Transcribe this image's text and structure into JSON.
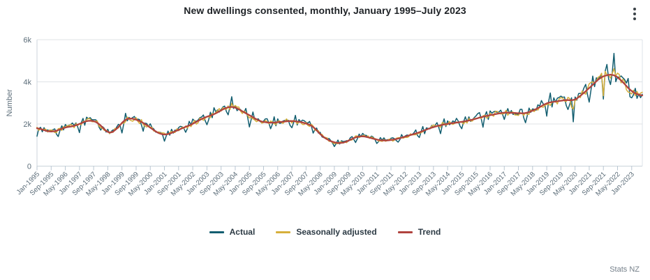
{
  "header": {
    "title": "New dwellings consented, monthly, January 1995–July 2023",
    "menu_icon": "kebab-menu-icon"
  },
  "footer": {
    "source": "Stats NZ"
  },
  "chart_data": {
    "type": "line",
    "title": "New dwellings consented, monthly, January 1995–July 2023",
    "xlabel": "",
    "ylabel": "Number",
    "ylim": [
      0,
      6000
    ],
    "ytick_values": [
      0,
      2000,
      4000,
      6000
    ],
    "ytick_labels": [
      "0",
      "2k",
      "4k",
      "6k"
    ],
    "grid": "horizontal",
    "legend_position": "bottom",
    "x_unit": "month",
    "x_start": "Jan-1995",
    "x_end": "Jul-2023",
    "months_total": 343,
    "xtick_every_months": 8,
    "xtick_labels": [
      "Jan-1995",
      "Sep-1995",
      "May-1996",
      "Jan-1997",
      "Sep-1997",
      "May-1998",
      "Jan-1999",
      "Sep-1999",
      "May-2000",
      "Jan-2001",
      "Sep-2001",
      "May-2002",
      "Jan-2003",
      "Sep-2003",
      "May-2004",
      "Jan-2005",
      "Sep-2005",
      "May-2006",
      "Jan-2007",
      "Sep-2007",
      "May-2008",
      "Jan-2009",
      "Sep-2009",
      "May-2010",
      "Jan-2011",
      "Sep-2011",
      "May-2012",
      "Jan-2013",
      "Sep-2013",
      "May-2014",
      "Jan-2015",
      "Sep-2015",
      "May-2016",
      "Jan-2017",
      "Sep-2017",
      "May-2018",
      "Jan-2019",
      "Sep-2019",
      "May-2020",
      "Jan-2021",
      "Sep-2021",
      "May-2022",
      "Jan-2023"
    ],
    "series": [
      {
        "name": "Actual",
        "color": "#135E70",
        "description": "monthly actual consents, jagged seasonal line"
      },
      {
        "name": "Seasonally adjusted",
        "color": "#D6AF3B",
        "description": "seasonally adjusted monthly consents"
      },
      {
        "name": "Trend",
        "color": "#B0433E",
        "description": "smooth trend line"
      }
    ],
    "trend_keypoints": [
      [
        0,
        1830
      ],
      [
        4,
        1700
      ],
      [
        8,
        1620
      ],
      [
        12,
        1700
      ],
      [
        16,
        1850
      ],
      [
        20,
        1880
      ],
      [
        24,
        2000
      ],
      [
        29,
        2180
      ],
      [
        34,
        2100
      ],
      [
        38,
        1750
      ],
      [
        41,
        1520
      ],
      [
        45,
        1750
      ],
      [
        50,
        2250
      ],
      [
        53,
        2280
      ],
      [
        58,
        2150
      ],
      [
        62,
        1950
      ],
      [
        66,
        1700
      ],
      [
        70,
        1500
      ],
      [
        74,
        1500
      ],
      [
        78,
        1650
      ],
      [
        83,
        1830
      ],
      [
        88,
        2000
      ],
      [
        92,
        2200
      ],
      [
        96,
        2350
      ],
      [
        100,
        2450
      ],
      [
        104,
        2650
      ],
      [
        108,
        2820
      ],
      [
        112,
        2800
      ],
      [
        116,
        2600
      ],
      [
        121,
        2370
      ],
      [
        126,
        2120
      ],
      [
        132,
        2050
      ],
      [
        138,
        2100
      ],
      [
        144,
        2150
      ],
      [
        150,
        2080
      ],
      [
        156,
        1900
      ],
      [
        160,
        1500
      ],
      [
        164,
        1250
      ],
      [
        168,
        1120
      ],
      [
        172,
        1080
      ],
      [
        176,
        1200
      ],
      [
        180,
        1380
      ],
      [
        184,
        1430
      ],
      [
        188,
        1350
      ],
      [
        193,
        1230
      ],
      [
        198,
        1210
      ],
      [
        204,
        1300
      ],
      [
        210,
        1450
      ],
      [
        216,
        1600
      ],
      [
        222,
        1800
      ],
      [
        228,
        1950
      ],
      [
        234,
        2030
      ],
      [
        240,
        2100
      ],
      [
        246,
        2200
      ],
      [
        252,
        2350
      ],
      [
        258,
        2450
      ],
      [
        264,
        2550
      ],
      [
        270,
        2520
      ],
      [
        276,
        2500
      ],
      [
        282,
        2700
      ],
      [
        288,
        3000
      ],
      [
        294,
        3080
      ],
      [
        300,
        3150
      ],
      [
        303,
        3100
      ],
      [
        306,
        3260
      ],
      [
        312,
        3700
      ],
      [
        318,
        4190
      ],
      [
        322,
        4330
      ],
      [
        326,
        4350
      ],
      [
        330,
        4080
      ],
      [
        336,
        3530
      ],
      [
        342,
        3320
      ]
    ],
    "seasonal_factors_jan_dec": [
      -0.17,
      -0.03,
      0.09,
      -0.04,
      0.06,
      0.0,
      0.02,
      0.01,
      0.03,
      0.05,
      0.07,
      -0.05
    ],
    "generation": {
      "seed": 3,
      "actual_noise_amp": 0.05,
      "sa_noise_amp": 0.055,
      "trend_smooth_window": 5,
      "anomalies": {
        "110": 0.08,
        "168": -0.05,
        "302": -0.08,
        "303": -0.25,
        "320": -0.32,
        "326": 0.1
      }
    }
  }
}
